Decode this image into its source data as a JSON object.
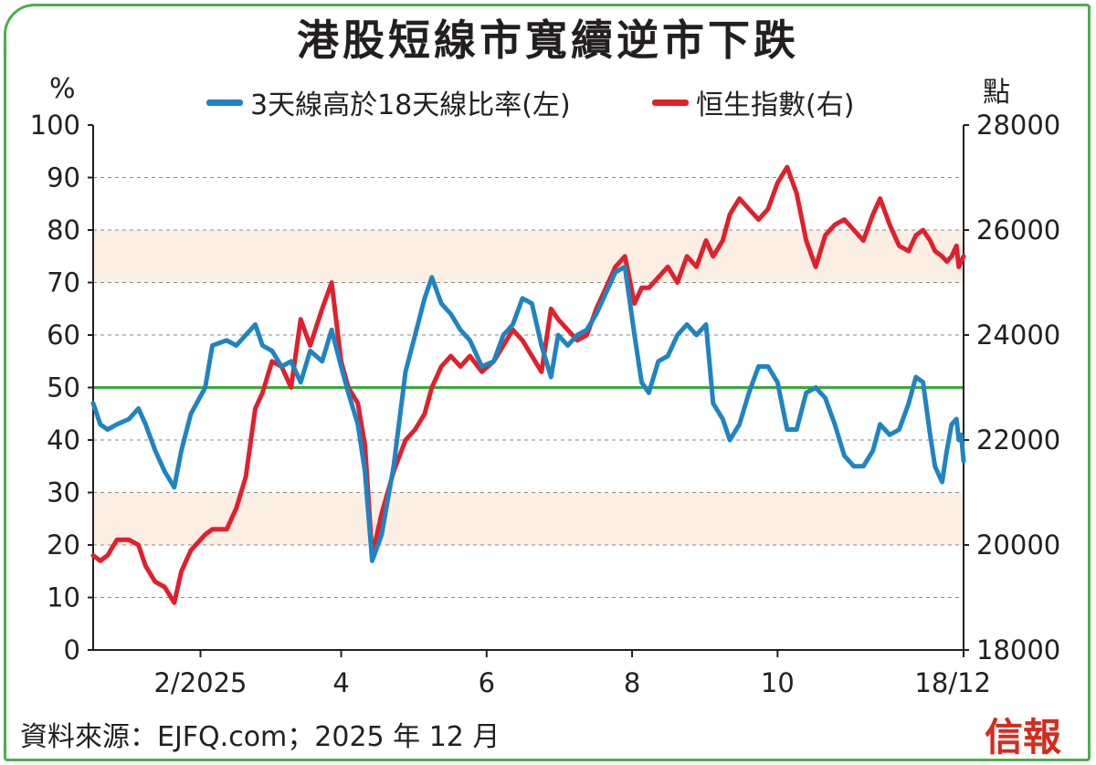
{
  "title": "港股短線市寬續逆市下跌",
  "left_unit": "%",
  "right_unit": "點",
  "source": "資料來源：EJFQ.com；2025 年 12 月",
  "logo": "信報",
  "colors": {
    "series_breadth": "#1f84c1",
    "series_hsi": "#e0202c",
    "ref_line": "#3aaa35",
    "band": "#fbeee3",
    "frame": "#4cae4c"
  },
  "chart_data": {
    "type": "line",
    "title": "港股短線市寬續逆市下跌",
    "x_ticks": [
      "2/2025",
      "4",
      "6",
      "8",
      "10",
      "18/12"
    ],
    "x_tick_dates": [
      "2025-02-01",
      "2025-04-01",
      "2025-06-01",
      "2025-08-01",
      "2025-10-01",
      "2025-12-18"
    ],
    "x_range": [
      "2024-12-18",
      "2025-12-18"
    ],
    "ylim_left": [
      0,
      100
    ],
    "ylim_right": [
      18000,
      28000
    ],
    "left_ticks": [
      0,
      10,
      20,
      30,
      40,
      50,
      60,
      70,
      80,
      90,
      100
    ],
    "right_ticks": [
      18000,
      20000,
      22000,
      24000,
      26000,
      28000
    ],
    "reference_line_left": 50,
    "shaded_bands_left": [
      [
        20,
        30
      ],
      [
        70,
        80
      ]
    ],
    "grid": "horizontal dashed",
    "legend_position": "top",
    "series": [
      {
        "name": "3天線高於18天線比率(左)",
        "axis": "left",
        "points": [
          [
            "2024-12-18",
            47
          ],
          [
            "2024-12-21",
            43
          ],
          [
            "2024-12-24",
            42
          ],
          [
            "2024-12-28",
            43
          ],
          [
            "2025-01-02",
            44
          ],
          [
            "2025-01-06",
            46
          ],
          [
            "2025-01-09",
            43
          ],
          [
            "2025-01-13",
            38
          ],
          [
            "2025-01-17",
            34
          ],
          [
            "2025-01-21",
            31
          ],
          [
            "2025-01-24",
            38
          ],
          [
            "2025-01-28",
            45
          ],
          [
            "2025-02-03",
            50
          ],
          [
            "2025-02-06",
            58
          ],
          [
            "2025-02-12",
            59
          ],
          [
            "2025-02-16",
            58
          ],
          [
            "2025-02-20",
            60
          ],
          [
            "2025-02-24",
            62
          ],
          [
            "2025-02-27",
            58
          ],
          [
            "2025-03-03",
            57
          ],
          [
            "2025-03-07",
            54
          ],
          [
            "2025-03-11",
            55
          ],
          [
            "2025-03-15",
            51
          ],
          [
            "2025-03-19",
            57
          ],
          [
            "2025-03-24",
            55
          ],
          [
            "2025-03-28",
            61
          ],
          [
            "2025-04-01",
            54
          ],
          [
            "2025-04-04",
            49
          ],
          [
            "2025-04-08",
            43
          ],
          [
            "2025-04-11",
            34
          ],
          [
            "2025-04-14",
            17
          ],
          [
            "2025-04-18",
            22
          ],
          [
            "2025-04-23",
            35
          ],
          [
            "2025-04-28",
            53
          ],
          [
            "2025-05-02",
            60
          ],
          [
            "2025-05-06",
            67
          ],
          [
            "2025-05-09",
            71
          ],
          [
            "2025-05-13",
            66
          ],
          [
            "2025-05-17",
            64
          ],
          [
            "2025-05-21",
            61
          ],
          [
            "2025-05-25",
            59
          ],
          [
            "2025-05-30",
            54
          ],
          [
            "2025-06-04",
            55
          ],
          [
            "2025-06-08",
            60
          ],
          [
            "2025-06-12",
            62
          ],
          [
            "2025-06-16",
            67
          ],
          [
            "2025-06-20",
            66
          ],
          [
            "2025-06-24",
            58
          ],
          [
            "2025-06-28",
            52
          ],
          [
            "2025-07-01",
            60
          ],
          [
            "2025-07-05",
            58
          ],
          [
            "2025-07-09",
            60
          ],
          [
            "2025-07-13",
            61
          ],
          [
            "2025-07-17",
            64
          ],
          [
            "2025-07-21",
            68
          ],
          [
            "2025-07-25",
            72
          ],
          [
            "2025-07-29",
            73
          ],
          [
            "2025-08-02",
            60
          ],
          [
            "2025-08-05",
            51
          ],
          [
            "2025-08-08",
            49
          ],
          [
            "2025-08-12",
            55
          ],
          [
            "2025-08-16",
            56
          ],
          [
            "2025-08-20",
            60
          ],
          [
            "2025-08-24",
            62
          ],
          [
            "2025-08-28",
            60
          ],
          [
            "2025-09-01",
            62
          ],
          [
            "2025-09-04",
            47
          ],
          [
            "2025-09-08",
            44
          ],
          [
            "2025-09-11",
            40
          ],
          [
            "2025-09-15",
            43
          ],
          [
            "2025-09-19",
            49
          ],
          [
            "2025-09-23",
            54
          ],
          [
            "2025-09-27",
            54
          ],
          [
            "2025-10-01",
            51
          ],
          [
            "2025-10-05",
            42
          ],
          [
            "2025-10-09",
            42
          ],
          [
            "2025-10-13",
            49
          ],
          [
            "2025-10-17",
            50
          ],
          [
            "2025-10-21",
            48
          ],
          [
            "2025-10-25",
            43
          ],
          [
            "2025-10-29",
            37
          ],
          [
            "2025-11-02",
            35
          ],
          [
            "2025-11-06",
            35
          ],
          [
            "2025-11-10",
            38
          ],
          [
            "2025-11-13",
            43
          ],
          [
            "2025-11-17",
            41
          ],
          [
            "2025-11-21",
            42
          ],
          [
            "2025-11-25",
            47
          ],
          [
            "2025-11-28",
            52
          ],
          [
            "2025-12-01",
            51
          ],
          [
            "2025-12-04",
            41
          ],
          [
            "2025-12-06",
            35
          ],
          [
            "2025-12-09",
            32
          ],
          [
            "2025-12-11",
            38
          ],
          [
            "2025-12-13",
            43
          ],
          [
            "2025-12-15",
            44
          ],
          [
            "2025-12-16",
            40
          ],
          [
            "2025-12-17",
            41
          ],
          [
            "2025-12-18",
            36
          ]
        ]
      },
      {
        "name": "恒生指數(右)",
        "axis": "right",
        "points": [
          [
            "2024-12-18",
            19800
          ],
          [
            "2024-12-21",
            19700
          ],
          [
            "2024-12-24",
            19800
          ],
          [
            "2024-12-28",
            20100
          ],
          [
            "2025-01-02",
            20100
          ],
          [
            "2025-01-06",
            20000
          ],
          [
            "2025-01-09",
            19600
          ],
          [
            "2025-01-13",
            19300
          ],
          [
            "2025-01-17",
            19200
          ],
          [
            "2025-01-21",
            18900
          ],
          [
            "2025-01-24",
            19500
          ],
          [
            "2025-01-28",
            19900
          ],
          [
            "2025-02-03",
            20200
          ],
          [
            "2025-02-06",
            20300
          ],
          [
            "2025-02-12",
            20300
          ],
          [
            "2025-02-16",
            20700
          ],
          [
            "2025-02-20",
            21300
          ],
          [
            "2025-02-24",
            22600
          ],
          [
            "2025-02-27",
            22900
          ],
          [
            "2025-03-03",
            23500
          ],
          [
            "2025-03-07",
            23400
          ],
          [
            "2025-03-11",
            23000
          ],
          [
            "2025-03-15",
            24300
          ],
          [
            "2025-03-19",
            23800
          ],
          [
            "2025-03-24",
            24500
          ],
          [
            "2025-03-28",
            25000
          ],
          [
            "2025-04-01",
            23500
          ],
          [
            "2025-04-04",
            23000
          ],
          [
            "2025-04-08",
            22700
          ],
          [
            "2025-04-11",
            21900
          ],
          [
            "2025-04-14",
            19800
          ],
          [
            "2025-04-18",
            20600
          ],
          [
            "2025-04-23",
            21400
          ],
          [
            "2025-04-28",
            22000
          ],
          [
            "2025-05-02",
            22200
          ],
          [
            "2025-05-06",
            22500
          ],
          [
            "2025-05-09",
            23000
          ],
          [
            "2025-05-13",
            23400
          ],
          [
            "2025-05-17",
            23600
          ],
          [
            "2025-05-21",
            23400
          ],
          [
            "2025-05-25",
            23600
          ],
          [
            "2025-05-30",
            23300
          ],
          [
            "2025-06-04",
            23500
          ],
          [
            "2025-06-08",
            23800
          ],
          [
            "2025-06-12",
            24100
          ],
          [
            "2025-06-16",
            23900
          ],
          [
            "2025-06-20",
            23600
          ],
          [
            "2025-06-24",
            23300
          ],
          [
            "2025-06-28",
            24500
          ],
          [
            "2025-07-01",
            24300
          ],
          [
            "2025-07-05",
            24100
          ],
          [
            "2025-07-09",
            23900
          ],
          [
            "2025-07-13",
            24000
          ],
          [
            "2025-07-17",
            24500
          ],
          [
            "2025-07-21",
            24900
          ],
          [
            "2025-07-25",
            25300
          ],
          [
            "2025-07-29",
            25500
          ],
          [
            "2025-08-02",
            24600
          ],
          [
            "2025-08-05",
            24900
          ],
          [
            "2025-08-08",
            24900
          ],
          [
            "2025-08-12",
            25100
          ],
          [
            "2025-08-16",
            25300
          ],
          [
            "2025-08-20",
            25000
          ],
          [
            "2025-08-24",
            25500
          ],
          [
            "2025-08-28",
            25300
          ],
          [
            "2025-09-01",
            25800
          ],
          [
            "2025-09-04",
            25500
          ],
          [
            "2025-09-08",
            25800
          ],
          [
            "2025-09-11",
            26300
          ],
          [
            "2025-09-15",
            26600
          ],
          [
            "2025-09-19",
            26400
          ],
          [
            "2025-09-23",
            26200
          ],
          [
            "2025-09-27",
            26400
          ],
          [
            "2025-10-01",
            26900
          ],
          [
            "2025-10-05",
            27200
          ],
          [
            "2025-10-09",
            26700
          ],
          [
            "2025-10-13",
            25800
          ],
          [
            "2025-10-17",
            25300
          ],
          [
            "2025-10-21",
            25900
          ],
          [
            "2025-10-25",
            26100
          ],
          [
            "2025-10-29",
            26200
          ],
          [
            "2025-11-02",
            26000
          ],
          [
            "2025-11-06",
            25800
          ],
          [
            "2025-11-10",
            26300
          ],
          [
            "2025-11-13",
            26600
          ],
          [
            "2025-11-17",
            26100
          ],
          [
            "2025-11-21",
            25700
          ],
          [
            "2025-11-25",
            25600
          ],
          [
            "2025-11-28",
            25900
          ],
          [
            "2025-12-01",
            26000
          ],
          [
            "2025-12-04",
            25800
          ],
          [
            "2025-12-06",
            25600
          ],
          [
            "2025-12-09",
            25500
          ],
          [
            "2025-12-11",
            25400
          ],
          [
            "2025-12-13",
            25500
          ],
          [
            "2025-12-15",
            25700
          ],
          [
            "2025-12-16",
            25300
          ],
          [
            "2025-12-17",
            25400
          ],
          [
            "2025-12-18",
            25500
          ]
        ]
      }
    ]
  }
}
